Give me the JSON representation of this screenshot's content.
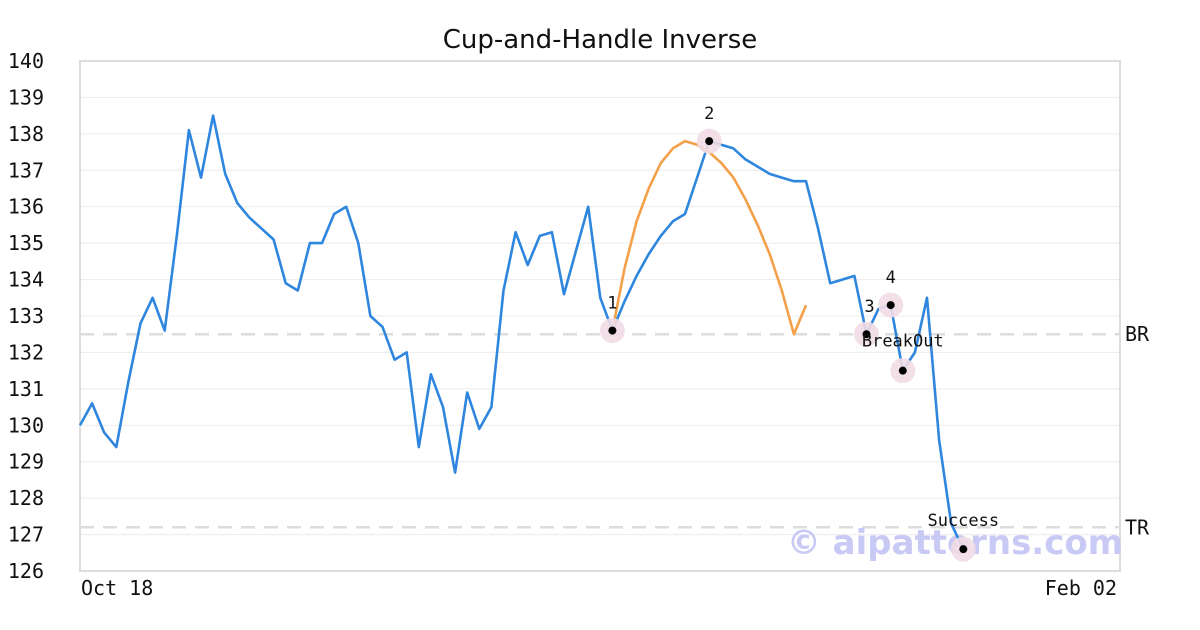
{
  "chart_data": {
    "type": "line",
    "title": "Cup-and-Handle Inverse",
    "xlabel": "",
    "ylabel": "",
    "ylim": [
      126,
      140
    ],
    "yticks": [
      126,
      127,
      128,
      129,
      130,
      131,
      132,
      133,
      134,
      135,
      136,
      137,
      138,
      139,
      140
    ],
    "x_tick_labels": [
      "Oct 18",
      "Feb 02"
    ],
    "grid": true,
    "colors": {
      "price": "#2f86de",
      "cup": "#f4a04a",
      "marker_halo": "#f1dbe4",
      "level": "#dddddd"
    },
    "series": [
      {
        "values": [
          130.0,
          130.6,
          129.8,
          129.4,
          131.2,
          132.8,
          133.5,
          132.6,
          135.2,
          138.1,
          136.8,
          138.5,
          136.9,
          136.1,
          135.7,
          135.4,
          135.1,
          133.9,
          133.7,
          135.0,
          135.0,
          135.8,
          136.0,
          135.0,
          133.0,
          132.7,
          131.8,
          132.0,
          129.4,
          131.4,
          130.5,
          128.7,
          130.9,
          129.9,
          130.5,
          133.7,
          135.3,
          134.4,
          135.2,
          135.3,
          133.6,
          134.8,
          136.0,
          133.5,
          132.6,
          133.4,
          134.1,
          134.7,
          135.2,
          135.6,
          135.8,
          136.8,
          137.8,
          137.7,
          137.6,
          137.3,
          137.1,
          136.9,
          136.8,
          136.7,
          136.7,
          135.4,
          133.9,
          134.0,
          134.1,
          132.5,
          133.2,
          133.3,
          131.5,
          132.0,
          133.5,
          129.6,
          127.3,
          126.6
        ]
      }
    ],
    "cup_curve": [
      132.6,
      134.3,
      135.6,
      136.5,
      137.2,
      137.6,
      137.8,
      137.7,
      137.5,
      137.2,
      136.8,
      136.2,
      135.5,
      134.7,
      133.7,
      132.5,
      133.3
    ],
    "cup_start_index": 44,
    "points": [
      {
        "label": "1",
        "index": 44,
        "value": 132.6
      },
      {
        "label": "2",
        "index": 52,
        "value": 137.8
      },
      {
        "label": "3",
        "index": 65,
        "value": 132.5
      },
      {
        "label": "4",
        "index": 67,
        "value": 133.3
      },
      {
        "label": "BreakOut",
        "index": 68,
        "value": 131.5
      },
      {
        "label": "Success",
        "index": 73,
        "value": 126.6
      }
    ],
    "levels": [
      {
        "label": "BR",
        "value": 132.5
      },
      {
        "label": "TR",
        "value": 127.2
      }
    ],
    "watermark": "© aipatterns.com"
  }
}
